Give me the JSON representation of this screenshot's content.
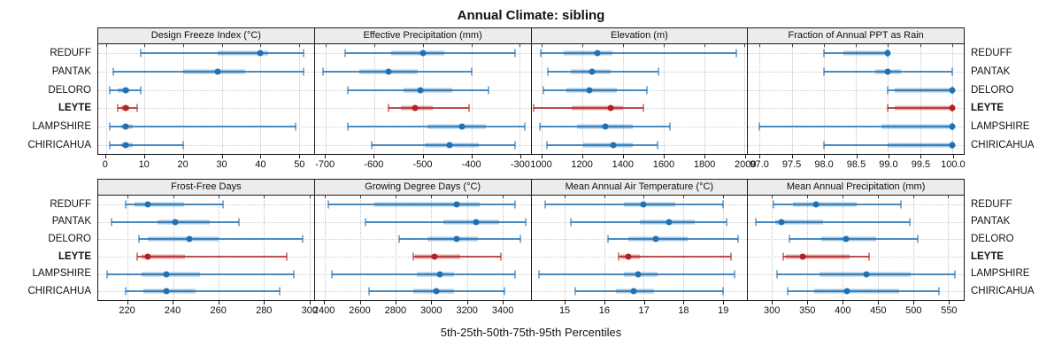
{
  "title": "Annual Climate: sibling",
  "caption": "5th-25th-50th-75th-95th Percentiles",
  "sites": [
    "REDUFF",
    "PANTAK",
    "DELORO",
    "LEYTE",
    "LAMPSHIRE",
    "CHIRICAHUA"
  ],
  "highlight_site": "LEYTE",
  "percentile_labels": [
    "5th",
    "25th",
    "50th",
    "75th",
    "95th"
  ],
  "colors": {
    "normal": "#1f71b4",
    "highlight": "#b22222",
    "strip_bg": "#ececec",
    "border": "#1a1a1a",
    "grid": "#c8c8c8"
  },
  "chart_data": {
    "type": "percentile-dotplot",
    "layout": "2 rows x 4 columns, shared site category axis",
    "value_order": [
      "p5",
      "p25",
      "p50",
      "p75",
      "p95"
    ],
    "rows": [
      [
        {
          "label": "Design Freeze Index (°C)",
          "xlim": [
            -2.0,
            53.8
          ],
          "tick_values": [
            0,
            10,
            20,
            30,
            40,
            50
          ],
          "tick_labels": [
            "0",
            "10",
            "20",
            "30",
            "40",
            "50"
          ],
          "series": [
            [
              9,
              29,
              40,
              42,
              51
            ],
            [
              2,
              20,
              29,
              36,
              51
            ],
            [
              1,
              3,
              5,
              6,
              9
            ],
            [
              3,
              4,
              5,
              6,
              8
            ],
            [
              1,
              4,
              5,
              7,
              49
            ],
            [
              1,
              4,
              5,
              7,
              20
            ]
          ]
        },
        {
          "label": "Effective Precipitation (mm)",
          "xlim": [
            -722,
            -278
          ],
          "tick_values": [
            -700,
            -600,
            -500,
            -400,
            -300
          ],
          "tick_labels": [
            "-700",
            "-600",
            "-500",
            "-400",
            "-300"
          ],
          "series": [
            [
              -660,
              -565,
              -500,
              -455,
              -310
            ],
            [
              -705,
              -630,
              -570,
              -510,
              -400
            ],
            [
              -655,
              -540,
              -505,
              -440,
              -365
            ],
            [
              -570,
              -545,
              -515,
              -480,
              -405
            ],
            [
              -655,
              -490,
              -420,
              -370,
              -290
            ],
            [
              -605,
              -495,
              -445,
              -385,
              -310
            ]
          ]
        },
        {
          "label": "Elevation (m)",
          "xlim": [
            950,
            2012
          ],
          "tick_values": [
            1000,
            1200,
            1400,
            1600,
            1800,
            2000
          ],
          "tick_labels": [
            "1000",
            "1200",
            "1400",
            "1600",
            "1800",
            "2000"
          ],
          "series": [
            [
              995,
              1110,
              1275,
              1350,
              1960
            ],
            [
              1030,
              1145,
              1250,
              1340,
              1575
            ],
            [
              1010,
              1120,
              1235,
              1370,
              1520
            ],
            [
              960,
              1150,
              1340,
              1400,
              1500
            ],
            [
              990,
              1175,
              1315,
              1450,
              1630
            ],
            [
              1025,
              1205,
              1355,
              1450,
              1570
            ]
          ]
        },
        {
          "label": "Fraction of Annual PPT as Rain",
          "xlim": [
            96.82,
            100.18
          ],
          "tick_values": [
            97.0,
            97.5,
            98.0,
            98.5,
            99.0,
            99.5,
            100.0
          ],
          "tick_labels": [
            "97.0",
            "97.5",
            "98.0",
            "98.5",
            "99.0",
            "99.5",
            "100.0"
          ],
          "series": [
            [
              98.0,
              98.3,
              99.0,
              99.0,
              99.0
            ],
            [
              98.0,
              98.8,
              99.0,
              99.2,
              100.0
            ],
            [
              99.0,
              99.1,
              100.0,
              100.0,
              100.0
            ],
            [
              99.0,
              99.1,
              100.0,
              100.0,
              100.0
            ],
            [
              97.0,
              98.9,
              100.0,
              100.0,
              100.0
            ],
            [
              98.0,
              99.0,
              100.0,
              100.0,
              100.0
            ]
          ]
        }
      ],
      [
        {
          "label": "Frost-Free Days",
          "xlim": [
            207,
            302
          ],
          "tick_values": [
            220,
            240,
            260,
            280,
            300
          ],
          "tick_labels": [
            "220",
            "240",
            "260",
            "280",
            "300"
          ],
          "series": [
            [
              219,
              223,
              229,
              245,
              262
            ],
            [
              213,
              233,
              241,
              256,
              269
            ],
            [
              225,
              229,
              247,
              260,
              297
            ],
            [
              224,
              226,
              229,
              245,
              290
            ],
            [
              211,
              226,
              237,
              252,
              293
            ],
            [
              219,
              227,
              237,
              250,
              287
            ]
          ]
        },
        {
          "label": "Growing Degree Days (°C)",
          "xlim": [
            2345,
            3558
          ],
          "tick_values": [
            2400,
            2600,
            2800,
            3000,
            3200,
            3400
          ],
          "tick_labels": [
            "2400",
            "2600",
            "2800",
            "3000",
            "3200",
            "3400"
          ],
          "series": [
            [
              2420,
              2680,
              3140,
              3270,
              3470
            ],
            [
              2630,
              3070,
              3250,
              3380,
              3530
            ],
            [
              2820,
              2980,
              3140,
              3260,
              3500
            ],
            [
              2900,
              2910,
              3020,
              3160,
              3390
            ],
            [
              2440,
              2920,
              3050,
              3130,
              3470
            ],
            [
              2650,
              2900,
              3030,
              3130,
              3410
            ]
          ]
        },
        {
          "label": "Mean Annual Air Temperature (°C)",
          "xlim": [
            14.15,
            19.62
          ],
          "tick_values": [
            15,
            16,
            17,
            18,
            19
          ],
          "tick_labels": [
            "15",
            "16",
            "17",
            "18",
            "19"
          ],
          "series": [
            [
              14.5,
              16.5,
              17.0,
              17.8,
              19.0
            ],
            [
              15.15,
              16.9,
              17.65,
              18.3,
              19.1
            ],
            [
              16.1,
              16.6,
              17.3,
              18.1,
              19.4
            ],
            [
              16.35,
              16.4,
              16.6,
              16.9,
              19.2
            ],
            [
              14.35,
              16.5,
              16.85,
              17.35,
              19.3
            ],
            [
              15.25,
              16.3,
              16.75,
              17.25,
              19.0
            ]
          ]
        },
        {
          "label": "Mean Annual Precipitation (mm)",
          "xlim": [
            266,
            572
          ],
          "tick_values": [
            300,
            350,
            400,
            450,
            500,
            550
          ],
          "tick_labels": [
            "300",
            "350",
            "400",
            "450",
            "500",
            "550"
          ],
          "series": [
            [
              302,
              330,
              362,
              420,
              483
            ],
            [
              277,
              305,
              313,
              372,
              495
            ],
            [
              325,
              370,
              405,
              448,
              507
            ],
            [
              316,
              320,
              343,
              410,
              438
            ],
            [
              307,
              368,
              434,
              497,
              560
            ],
            [
              322,
              360,
              406,
              480,
              537
            ]
          ]
        }
      ]
    ]
  }
}
